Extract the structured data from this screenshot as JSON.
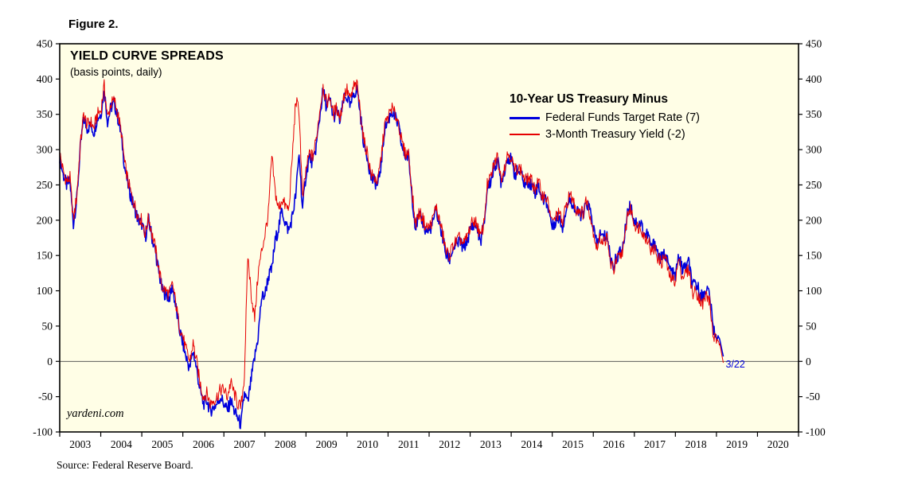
{
  "figure_label": "Figure 2.",
  "chart": {
    "title": "YIELD CURVE SPREADS",
    "subtitle": "(basis points, daily)",
    "watermark": "yardeni.com",
    "legend": {
      "heading": "10-Year US Treasury Minus",
      "series": [
        {
          "label": "Federal Funds Target Rate (7)"
        },
        {
          "label": "3-Month Treasury Yield (-2)"
        }
      ]
    }
  },
  "source": "Source: Federal Reserve Board.",
  "chart_data": {
    "type": "line",
    "title": "YIELD CURVE SPREADS",
    "subtitle": "(basis points, daily)",
    "unit": "basis points",
    "background": "#fffee6",
    "xlim": [
      2003.0,
      2021.0
    ],
    "ylim": [
      -100,
      450
    ],
    "yticks": [
      -100,
      -50,
      0,
      50,
      100,
      150,
      200,
      250,
      300,
      350,
      400,
      450
    ],
    "xticks": [
      2003,
      2004,
      2005,
      2006,
      2007,
      2008,
      2009,
      2010,
      2011,
      2012,
      2013,
      2014,
      2015,
      2016,
      2017,
      2018,
      2019,
      2020
    ],
    "zero_line": true,
    "legend_position": "inside-top-right",
    "grid": false,
    "x_start_year": 2003.0,
    "x_step_years": 0.0833333,
    "annotation": {
      "text": "3/22",
      "color": "#0000dd"
    },
    "series": [
      {
        "name": "10-Year US Treasury Minus Federal Funds Target Rate",
        "legend": "Federal Funds Target Rate (7)",
        "color": "#0000dd",
        "latest_value": 7,
        "values": [
          290,
          265,
          250,
          255,
          195,
          230,
          300,
          345,
          330,
          335,
          325,
          345,
          350,
          385,
          340,
          360,
          365,
          345,
          320,
          275,
          250,
          230,
          215,
          200,
          195,
          175,
          200,
          175,
          155,
          125,
          100,
          95,
          90,
          105,
          75,
          45,
          25,
          5,
          -10,
          15,
          -10,
          -40,
          -60,
          -55,
          -70,
          -65,
          -60,
          -50,
          -60,
          -70,
          -55,
          -70,
          -80,
          -90,
          -45,
          -60,
          -25,
          5,
          35,
          90,
          95,
          120,
          130,
          170,
          190,
          215,
          195,
          185,
          205,
          235,
          295,
          215,
          265,
          290,
          280,
          305,
          345,
          385,
          360,
          370,
          345,
          355,
          340,
          370,
          375,
          360,
          380,
          385,
          345,
          305,
          290,
          260,
          255,
          250,
          280,
          330,
          340,
          355,
          345,
          335,
          305,
          290,
          290,
          235,
          190,
          205,
          200,
          185,
          185,
          195,
          215,
          195,
          175,
          150,
          145,
          160,
          165,
          170,
          160,
          170,
          185,
          195,
          190,
          170,
          190,
          245,
          255,
          275,
          285,
          255,
          270,
          290,
          285,
          265,
          270,
          265,
          250,
          255,
          250,
          240,
          250,
          230,
          230,
          215,
          190,
          200,
          205,
          190,
          215,
          230,
          225,
          210,
          210,
          205,
          225,
          215,
          190,
          165,
          180,
          175,
          180,
          145,
          135,
          150,
          155,
          170,
          215,
          220,
          200,
          195,
          195,
          180,
          180,
          160,
          170,
          150,
          145,
          155,
          135,
          125,
          120,
          150,
          130,
          135,
          140,
          105,
          110,
          100,
          90,
          105,
          95,
          48,
          35,
          30,
          7
        ]
      },
      {
        "name": "10-Year US Treasury Minus 3-Month Treasury Yield",
        "legend": "3-Month Treasury Yield (-2)",
        "color": "#e60000",
        "latest_value": -2,
        "values": [
          295,
          270,
          255,
          260,
          200,
          235,
          305,
          350,
          335,
          340,
          330,
          350,
          355,
          390,
          345,
          365,
          370,
          350,
          325,
          280,
          255,
          235,
          220,
          205,
          200,
          180,
          205,
          180,
          160,
          130,
          105,
          100,
          95,
          110,
          80,
          50,
          35,
          15,
          0,
          25,
          0,
          -30,
          -50,
          -45,
          -60,
          -55,
          -50,
          -40,
          -40,
          -50,
          -30,
          -45,
          -60,
          -65,
          -20,
          150,
          95,
          60,
          125,
          155,
          180,
          210,
          290,
          240,
          215,
          230,
          220,
          215,
          290,
          370,
          355,
          230,
          270,
          295,
          290,
          315,
          355,
          390,
          365,
          375,
          350,
          360,
          345,
          375,
          385,
          370,
          390,
          390,
          350,
          310,
          295,
          265,
          260,
          255,
          290,
          335,
          345,
          360,
          350,
          340,
          310,
          295,
          295,
          240,
          195,
          210,
          205,
          190,
          190,
          200,
          220,
          200,
          180,
          155,
          150,
          165,
          170,
          175,
          165,
          175,
          190,
          200,
          195,
          175,
          195,
          250,
          260,
          280,
          290,
          260,
          275,
          295,
          290,
          270,
          275,
          270,
          255,
          260,
          255,
          245,
          255,
          235,
          235,
          220,
          195,
          205,
          210,
          195,
          220,
          235,
          230,
          215,
          215,
          210,
          230,
          210,
          185,
          160,
          175,
          170,
          175,
          140,
          130,
          145,
          150,
          165,
          210,
          215,
          195,
          190,
          190,
          175,
          175,
          155,
          160,
          145,
          140,
          150,
          125,
          115,
          115,
          145,
          120,
          125,
          130,
          95,
          100,
          90,
          80,
          95,
          85,
          38,
          28,
          25,
          -2
        ]
      }
    ]
  }
}
